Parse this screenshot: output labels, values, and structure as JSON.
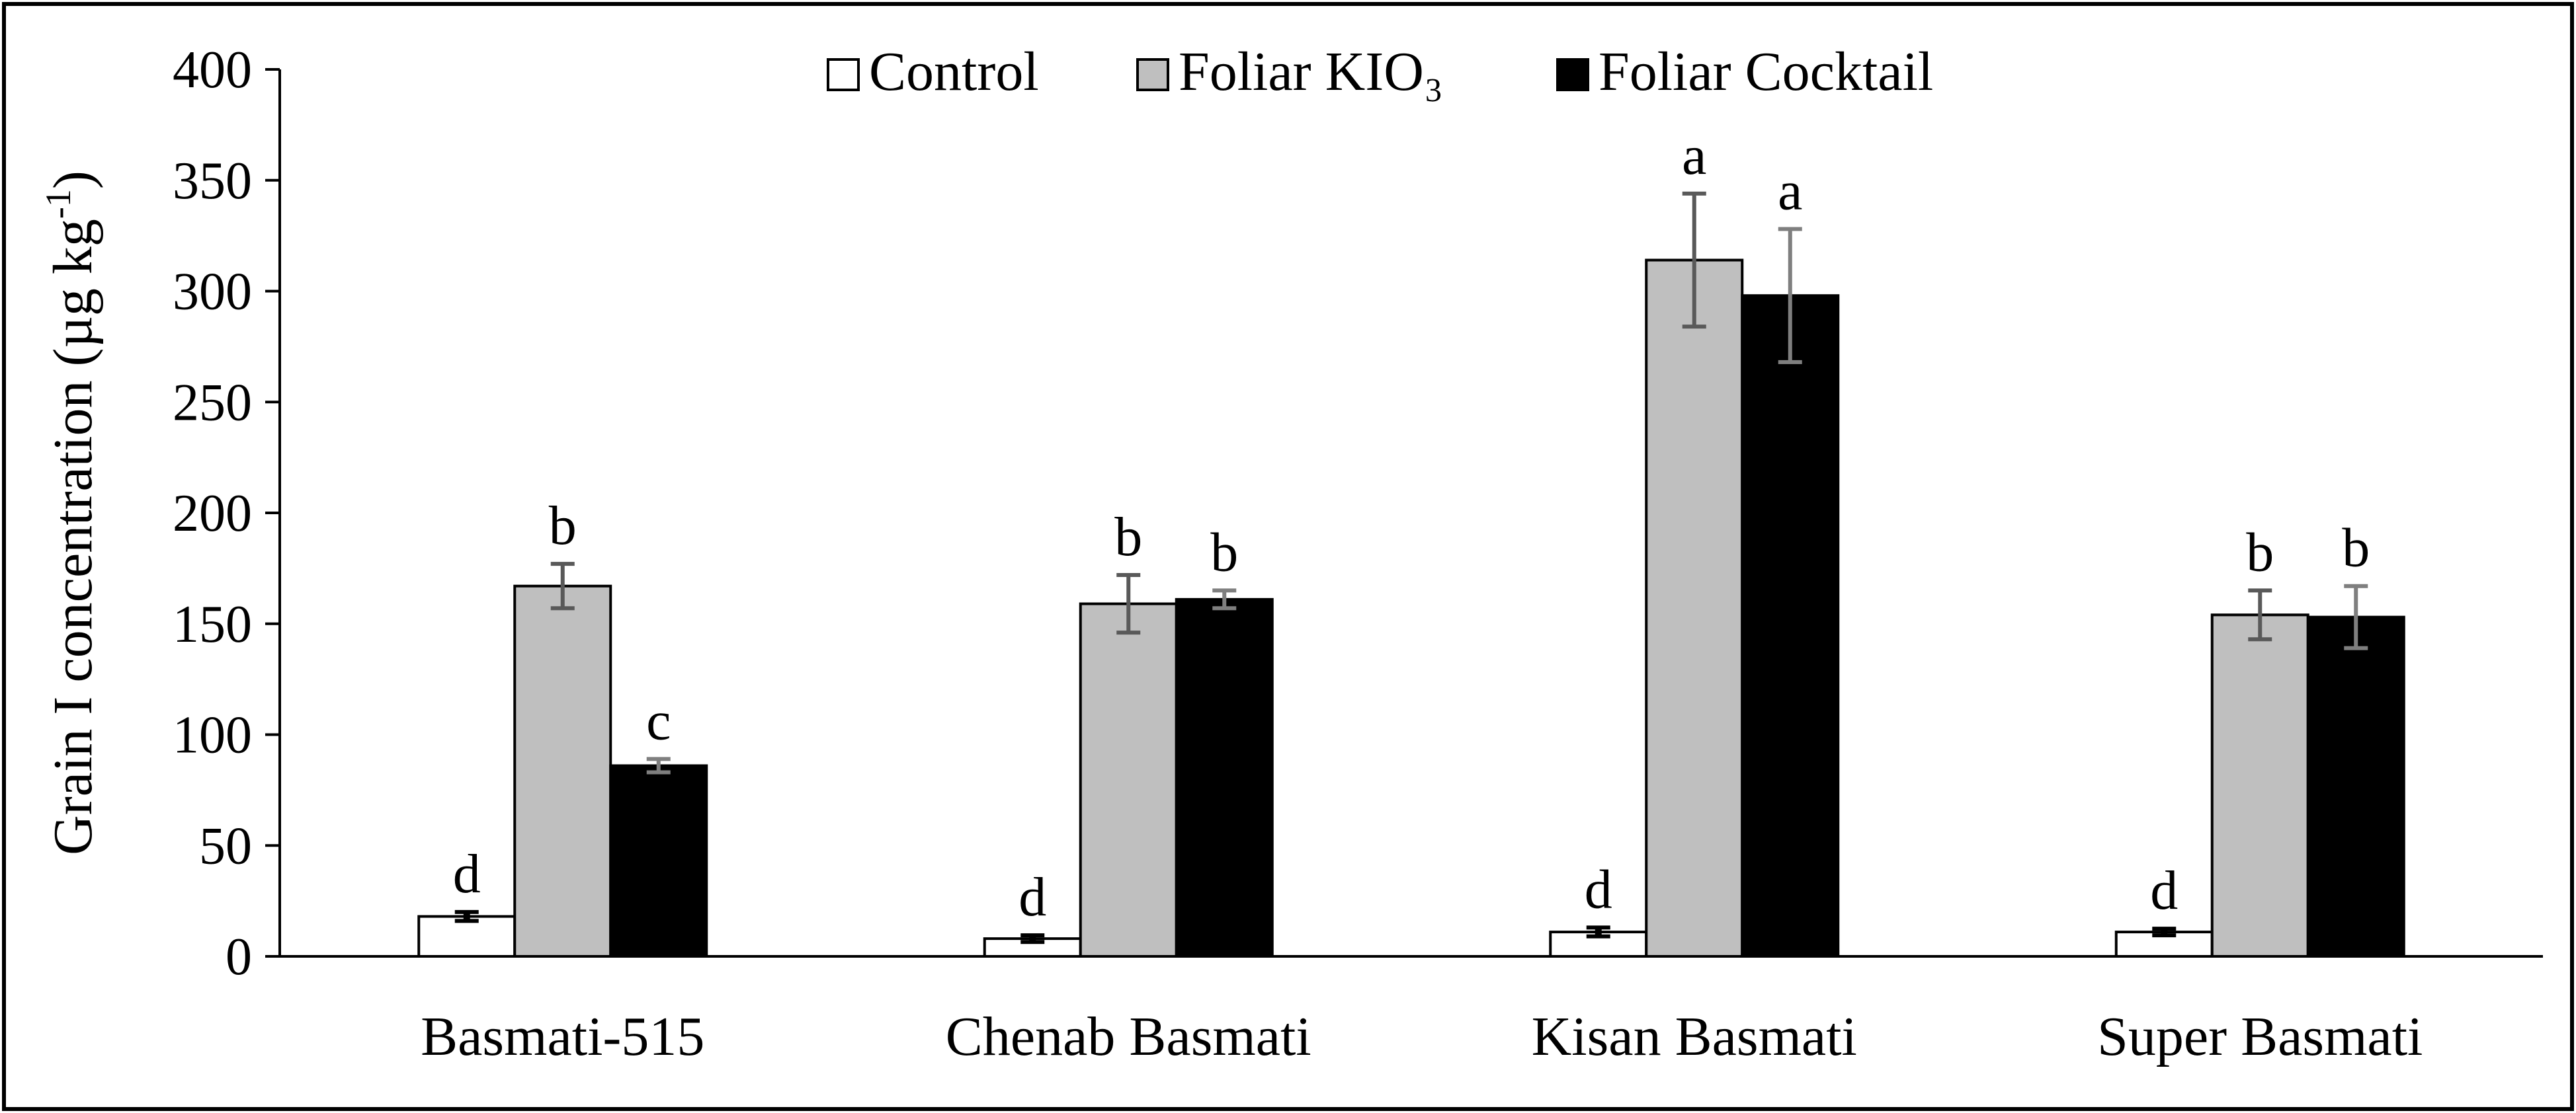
{
  "chart_data": {
    "type": "bar",
    "title": "",
    "xlabel": "",
    "ylabel": "Grain I concentration (µg kg",
    "ylabel_superscript": "-1",
    "ylabel_close": ")",
    "ylim": [
      0,
      400
    ],
    "yticks": [
      "0",
      "50",
      "100",
      "150",
      "200",
      "250",
      "300",
      "350",
      "400"
    ],
    "grid": false,
    "legend_position": "top-center",
    "categories": [
      "Basmati-515",
      "Chenab Basmati",
      "Kisan Basmati",
      "Super Basmati"
    ],
    "series": [
      {
        "name": "Control",
        "color": "#ffffff",
        "values": [
          18,
          8,
          11,
          11
        ],
        "errors": [
          2,
          1.5,
          2,
          1.5
        ],
        "labels": [
          "d",
          "d",
          "d",
          "d"
        ]
      },
      {
        "name": "Foliar KIO₃",
        "color": "#bfbfbf",
        "values": [
          167,
          159,
          314,
          154
        ],
        "errors": [
          10,
          13,
          30,
          11
        ],
        "labels": [
          "b",
          "b",
          "a",
          "b"
        ]
      },
      {
        "name": "Foliar Cocktail",
        "color": "#000000",
        "values": [
          86,
          161,
          298,
          153
        ],
        "errors": [
          3,
          4,
          30,
          14
        ],
        "labels": [
          "c",
          "b",
          "a",
          "b"
        ]
      }
    ]
  }
}
